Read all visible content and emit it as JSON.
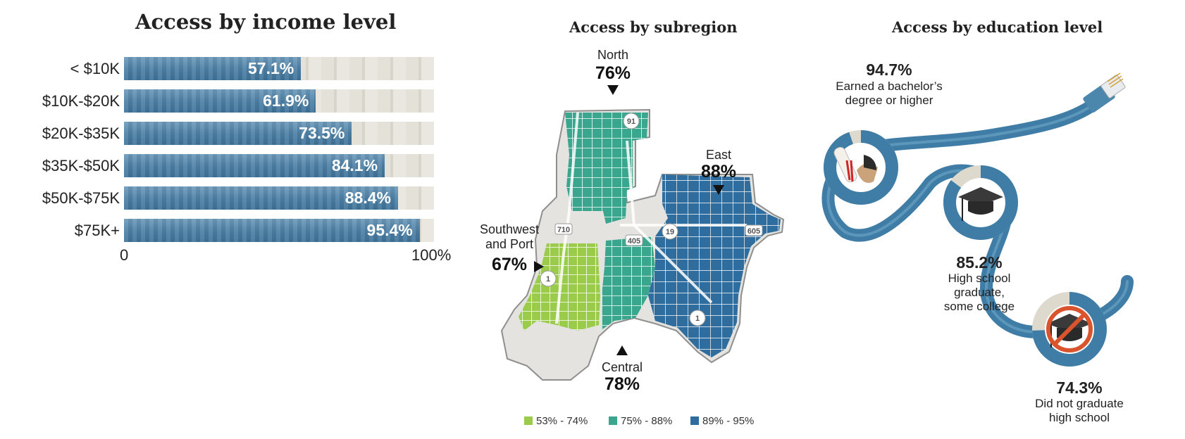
{
  "chart_data": [
    {
      "type": "bar",
      "title": "Access by income level",
      "categories": [
        "< $10K",
        "$10K-$20K",
        "$20K-$35K",
        "$35K-$50K",
        "$50K-$75K",
        "$75K+"
      ],
      "values": [
        57.1,
        61.9,
        73.5,
        84.1,
        88.4,
        95.4
      ],
      "value_labels": [
        "57.1%",
        "61.9%",
        "73.5%",
        "84.1%",
        "88.4%",
        "95.4%"
      ],
      "xlim": [
        0,
        100
      ],
      "tick_labels": [
        "0",
        "100%"
      ],
      "orientation": "horizontal",
      "colors": {
        "fill": "#4e81a6",
        "track": "#e3e1d8"
      }
    },
    {
      "type": "map",
      "title": "Access by subregion",
      "regions": [
        {
          "name": "North",
          "value": "76%"
        },
        {
          "name": "East",
          "value": "88%"
        },
        {
          "name": "Southwest and Port",
          "name_lines": [
            "Southwest",
            "and Port"
          ],
          "value": "67%"
        },
        {
          "name": "Central",
          "value": "78%"
        }
      ],
      "legend": [
        {
          "label": "53% - 74%",
          "color": "#9bcb4b"
        },
        {
          "label": "75% - 88%",
          "color": "#3aa68e"
        },
        {
          "label": "89% - 95%",
          "color": "#2e6d9d"
        }
      ],
      "highway_labels": [
        "91",
        "710",
        "405",
        "19",
        "605",
        "1",
        "1"
      ]
    },
    {
      "type": "pie",
      "title": "Access by education level",
      "items": [
        {
          "value": 94.7,
          "pct_label": "94.7%",
          "label_lines": [
            "Earned a bachelor’s",
            "degree or higher"
          ],
          "icon": "diploma-handshake-icon"
        },
        {
          "value": 85.2,
          "pct_label": "85.2%",
          "label_lines": [
            "High school",
            "graduate,",
            "some college"
          ],
          "icon": "graduation-cap-icon"
        },
        {
          "value": 74.3,
          "pct_label": "74.3%",
          "label_lines": [
            "Did not graduate",
            "high school"
          ],
          "icon": "no-graduation-cap-icon"
        }
      ],
      "colors": {
        "ring": "#3f7da6",
        "remainder": "#ddd9cc",
        "cable": "#3f7da6"
      }
    }
  ]
}
